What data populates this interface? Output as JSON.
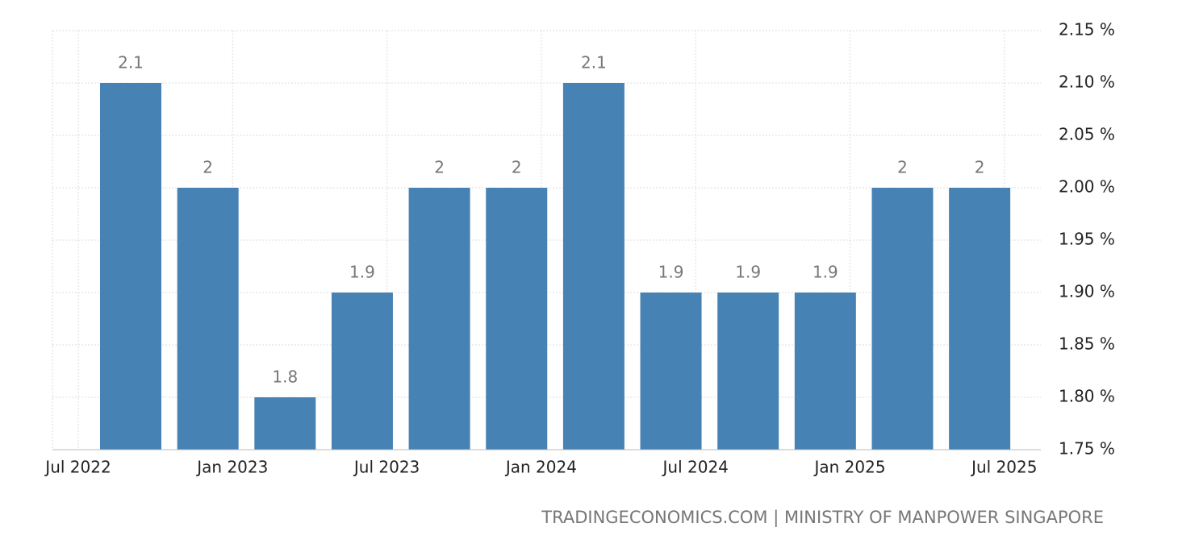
{
  "chart_data": {
    "type": "bar",
    "values": [
      2.1,
      2,
      1.8,
      1.9,
      2,
      2,
      2.1,
      1.9,
      1.9,
      1.9,
      2,
      2
    ],
    "color": "#4682b4",
    "x_labels": [
      "Jul 2022",
      "Jan 2023",
      "Jul 2023",
      "Jan 2024",
      "Jul 2024",
      "Jan 2025",
      "Jul 2025"
    ],
    "ylim": [
      1.75,
      2.15
    ],
    "yticks": [
      {
        "value": 1.75,
        "label": "1.75 %"
      },
      {
        "value": 1.8,
        "label": "1.80 %"
      },
      {
        "value": 1.85,
        "label": "1.85 %"
      },
      {
        "value": 1.9,
        "label": "1.90 %"
      },
      {
        "value": 1.95,
        "label": "1.95 %"
      },
      {
        "value": 2,
        "label": "2.00 %"
      },
      {
        "value": 2.05,
        "label": "2.05 %"
      },
      {
        "value": 2.1,
        "label": "2.10 %"
      },
      {
        "value": 2.15,
        "label": "2.15 %"
      }
    ],
    "grid": true,
    "source": "TRADINGECONOMICS.COM | MINISTRY OF MANPOWER SINGAPORE"
  }
}
